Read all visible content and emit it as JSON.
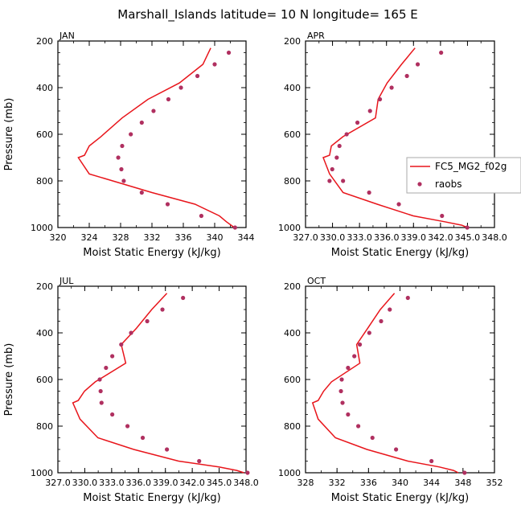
{
  "figure_title": "Marshall_Islands  latitude= 10 N longitude= 165 E",
  "colors": {
    "model": "#e8151b",
    "obs": "#b03060",
    "axis": "#000000"
  },
  "legend": {
    "model_label": "FC5_MG2_f02g",
    "obs_label": "raobs"
  },
  "chart_data": [
    {
      "type": "line",
      "title": "JAN",
      "xlabel": "Moist Static Energy (kJ/kg)",
      "ylabel": "Pressure (mb)",
      "xlim": [
        320,
        344
      ],
      "ylim": [
        200,
        1000
      ],
      "y_inverted": true,
      "xticks": [
        320,
        324,
        328,
        332,
        336,
        340,
        344
      ],
      "xtick_labels": [
        "320",
        "324",
        "328",
        "332",
        "336",
        "340",
        "344"
      ],
      "yticks": [
        200,
        400,
        600,
        800,
        1000
      ],
      "series": [
        {
          "name": "FC5_MG2_f02g",
          "style": "line",
          "x": [
            339.5,
            338.5,
            335.5,
            331.5,
            328.2,
            325.5,
            324.0,
            323.4,
            322.6,
            324.0,
            332.0,
            337.5,
            340.6,
            341.5,
            342.1,
            342.5
          ],
          "y": [
            230,
            300,
            380,
            450,
            530,
            610,
            650,
            690,
            700,
            770,
            850,
            900,
            950,
            975,
            990,
            1000
          ]
        },
        {
          "name": "raobs",
          "style": "markers",
          "x": [
            341.8,
            340.0,
            337.8,
            335.7,
            334.1,
            332.2,
            330.7,
            329.3,
            328.2,
            327.7,
            328.1,
            328.4,
            330.7,
            334.0,
            338.3,
            342.6
          ],
          "y": [
            250,
            300,
            350,
            400,
            450,
            500,
            550,
            600,
            650,
            700,
            750,
            800,
            850,
            900,
            950,
            1000
          ]
        }
      ]
    },
    {
      "type": "line",
      "title": "APR",
      "xlabel": "Moist Static Energy (kJ/kg)",
      "ylabel": "",
      "xlim": [
        327.03,
        348.03
      ],
      "ylim": [
        200,
        1000
      ],
      "y_inverted": true,
      "xticks": [
        327.03,
        330.03,
        333.03,
        336.03,
        339.03,
        342.03,
        345.03,
        348.03
      ],
      "xtick_labels": [
        "327.0",
        "330.0",
        "333.0",
        "336.0",
        "339.0",
        "342.0",
        "345.0",
        "348.0"
      ],
      "yticks": [
        200,
        400,
        600,
        800,
        1000
      ],
      "series": [
        {
          "name": "FC5_MG2_f02g",
          "style": "line",
          "x": [
            339.2,
            337.7,
            336.1,
            335.1,
            334.8,
            331.2,
            329.9,
            329.7,
            329.0,
            329.7,
            331.2,
            335.0,
            339.0,
            342.5,
            344.4,
            345.0
          ],
          "y": [
            230,
            300,
            380,
            450,
            530,
            610,
            650,
            690,
            700,
            770,
            850,
            900,
            950,
            975,
            990,
            1000
          ]
        },
        {
          "name": "raobs",
          "style": "markers",
          "x": [
            342.1,
            339.5,
            338.3,
            336.6,
            335.3,
            334.2,
            332.8,
            331.6,
            330.8,
            330.5,
            330.0,
            329.7,
            331.2,
            334.1,
            337.4,
            342.2,
            345.0
          ],
          "y": [
            250,
            300,
            350,
            400,
            450,
            500,
            550,
            600,
            650,
            700,
            750,
            800,
            800,
            850,
            900,
            950,
            1000
          ]
        }
      ]
    },
    {
      "type": "line",
      "title": "JUL",
      "xlabel": "Moist Static Energy (kJ/kg)",
      "ylabel": "Pressure (mb)",
      "xlim": [
        327.03,
        348.03
      ],
      "ylim": [
        200,
        1000
      ],
      "y_inverted": true,
      "xticks": [
        327.03,
        330.03,
        333.03,
        336.03,
        339.03,
        342.03,
        345.03,
        348.03
      ],
      "xtick_labels": [
        "327.0",
        "330.0",
        "333.0",
        "336.0",
        "339.0",
        "342.0",
        "345.0",
        "348.0"
      ],
      "yticks": [
        200,
        400,
        600,
        800,
        1000
      ],
      "series": [
        {
          "name": "FC5_MG2_f02g",
          "style": "line",
          "x": [
            339.2,
            337.5,
            335.8,
            334.1,
            334.6,
            331.2,
            330.0,
            329.3,
            328.7,
            329.5,
            331.5,
            335.5,
            340.5,
            345.0,
            347.0,
            347.8
          ],
          "y": [
            230,
            300,
            380,
            450,
            530,
            610,
            650,
            690,
            700,
            770,
            850,
            900,
            950,
            975,
            990,
            1000
          ]
        },
        {
          "name": "raobs",
          "style": "markers",
          "x": [
            341.0,
            338.7,
            337.0,
            335.2,
            334.1,
            333.1,
            332.4,
            331.7,
            331.8,
            331.9,
            333.1,
            334.8,
            336.5,
            339.2,
            342.8,
            348.2
          ],
          "y": [
            250,
            300,
            350,
            400,
            450,
            500,
            550,
            600,
            650,
            700,
            750,
            800,
            850,
            900,
            950,
            1000
          ]
        }
      ]
    },
    {
      "type": "line",
      "title": "OCT",
      "xlabel": "Moist Static Energy (kJ/kg)",
      "ylabel": "",
      "xlim": [
        328,
        352
      ],
      "ylim": [
        200,
        1000
      ],
      "y_inverted": true,
      "xticks": [
        328,
        332,
        336,
        340,
        344,
        348,
        352
      ],
      "xtick_labels": [
        "328",
        "332",
        "336",
        "340",
        "344",
        "348",
        "352"
      ],
      "yticks": [
        200,
        400,
        600,
        800,
        1000
      ],
      "series": [
        {
          "name": "FC5_MG2_f02g",
          "style": "line",
          "x": [
            339.3,
            337.5,
            335.9,
            334.5,
            334.9,
            331.3,
            330.3,
            329.6,
            328.9,
            329.6,
            331.8,
            335.8,
            341.0,
            345.0,
            346.8,
            347.4
          ],
          "y": [
            230,
            300,
            380,
            450,
            530,
            610,
            650,
            690,
            700,
            770,
            850,
            900,
            950,
            975,
            990,
            1000
          ]
        },
        {
          "name": "raobs",
          "style": "markers",
          "x": [
            341.0,
            338.7,
            337.6,
            336.1,
            334.9,
            334.2,
            333.4,
            332.6,
            332.5,
            332.7,
            333.4,
            334.7,
            336.5,
            339.5,
            344.0,
            348.2
          ],
          "y": [
            250,
            300,
            350,
            400,
            450,
            500,
            550,
            600,
            650,
            700,
            750,
            800,
            850,
            900,
            950,
            1000
          ]
        }
      ]
    }
  ]
}
